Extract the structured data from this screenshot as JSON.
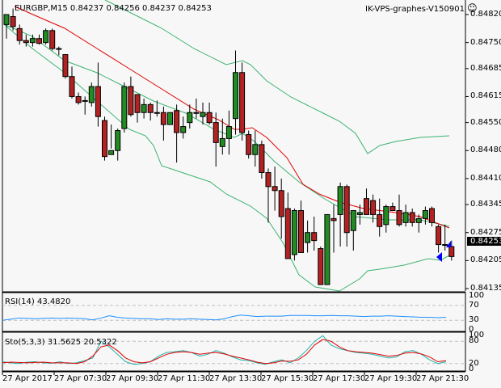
{
  "header": {
    "symbol_info": "EURGBP,M15  0.84237 0.84256 0.84237 0.84253",
    "ea_label": "IK-VPS-graphes-V150901",
    "smiley_icon": "☺"
  },
  "colors": {
    "background": "#f7f7f7",
    "bull": "#228b22",
    "bear": "#b22222",
    "bb": "#3cb371",
    "ma": "#e00000",
    "rsi": "#1e90ff",
    "sto_main": "#20b2aa",
    "sto_signal": "#e00000",
    "axis": "#000000",
    "grid_level": "#c0c0c0"
  },
  "price_axis": {
    "labels": [
      "0.84820",
      "0.84750",
      "0.84685",
      "0.84615",
      "0.84550",
      "0.84480",
      "0.84410",
      "0.84345",
      "0.84275",
      "0.84205",
      "0.84135"
    ],
    "current_price": "0.84253"
  },
  "rsi": {
    "title": "RSI(14) 43.4820",
    "axis_labels": [
      "100",
      "70",
      "30",
      "0"
    ]
  },
  "sto": {
    "title": "Sto(5,3,3) 31.5625 20.5322",
    "axis_labels": [
      "100",
      "80",
      "20",
      "0"
    ]
  },
  "time_axis": {
    "labels": [
      "27 Apr 2017",
      "27 Apr 07:30",
      "27 Apr 09:30",
      "27 Apr 11:30",
      "27 Apr 13:30",
      "27 Apr 15:30",
      "27 Apr 17:30",
      "27 Apr 19:30",
      "27 Apr 21:30"
    ]
  },
  "chart_data": [
    {
      "type": "candlestick",
      "title": "EURGBP,M15",
      "ohlc_header": {
        "open": 0.84237,
        "high": 0.84256,
        "low": 0.84237,
        "close": 0.84253
      },
      "ylim": [
        0.8411,
        0.8484
      ],
      "y_ticks": [
        0.8482,
        0.8475,
        0.84685,
        0.84615,
        0.8455,
        0.8448,
        0.8441,
        0.84345,
        0.84275,
        0.84205,
        0.84135
      ],
      "x_tick_labels": [
        "27 Apr 2017",
        "27 Apr 07:30",
        "27 Apr 09:30",
        "27 Apr 11:30",
        "27 Apr 13:30",
        "27 Apr 15:30",
        "27 Apr 17:30",
        "27 Apr 19:30",
        "27 Apr 21:30"
      ],
      "candles": [
        {
          "o": 0.84795,
          "h": 0.8482,
          "l": 0.8476,
          "c": 0.8482
        },
        {
          "o": 0.84815,
          "h": 0.84835,
          "l": 0.8478,
          "c": 0.8479
        },
        {
          "o": 0.84785,
          "h": 0.84795,
          "l": 0.84745,
          "c": 0.84755
        },
        {
          "o": 0.84755,
          "h": 0.8477,
          "l": 0.8474,
          "c": 0.8475
        },
        {
          "o": 0.8475,
          "h": 0.8477,
          "l": 0.8474,
          "c": 0.8476
        },
        {
          "o": 0.8476,
          "h": 0.8477,
          "l": 0.84745,
          "c": 0.84748
        },
        {
          "o": 0.8475,
          "h": 0.84785,
          "l": 0.84745,
          "c": 0.8478
        },
        {
          "o": 0.8478,
          "h": 0.84785,
          "l": 0.8473,
          "c": 0.84735
        },
        {
          "o": 0.84735,
          "h": 0.8474,
          "l": 0.84718,
          "c": 0.84735
        },
        {
          "o": 0.8472,
          "h": 0.8472,
          "l": 0.8466,
          "c": 0.84665
        },
        {
          "o": 0.84665,
          "h": 0.8469,
          "l": 0.8461,
          "c": 0.84615
        },
        {
          "o": 0.84615,
          "h": 0.84625,
          "l": 0.84595,
          "c": 0.846
        },
        {
          "o": 0.84605,
          "h": 0.84615,
          "l": 0.8457,
          "c": 0.84605
        },
        {
          "o": 0.846,
          "h": 0.8465,
          "l": 0.8459,
          "c": 0.8464
        },
        {
          "o": 0.8464,
          "h": 0.847,
          "l": 0.8454,
          "c": 0.84565
        },
        {
          "o": 0.84555,
          "h": 0.84565,
          "l": 0.84455,
          "c": 0.84465
        },
        {
          "o": 0.8447,
          "h": 0.84545,
          "l": 0.84485,
          "c": 0.8448
        },
        {
          "o": 0.8448,
          "h": 0.84535,
          "l": 0.84455,
          "c": 0.8453
        },
        {
          "o": 0.84535,
          "h": 0.8465,
          "l": 0.84525,
          "c": 0.8464
        },
        {
          "o": 0.8464,
          "h": 0.84665,
          "l": 0.84565,
          "c": 0.8457
        },
        {
          "o": 0.8462,
          "h": 0.8462,
          "l": 0.8455,
          "c": 0.84575
        },
        {
          "o": 0.84575,
          "h": 0.8461,
          "l": 0.8456,
          "c": 0.84595
        },
        {
          "o": 0.84595,
          "h": 0.846,
          "l": 0.84555,
          "c": 0.84575
        },
        {
          "o": 0.84575,
          "h": 0.84605,
          "l": 0.84565,
          "c": 0.84575
        },
        {
          "o": 0.84575,
          "h": 0.8459,
          "l": 0.84505,
          "c": 0.84545
        },
        {
          "o": 0.84545,
          "h": 0.84575,
          "l": 0.84545,
          "c": 0.84575
        },
        {
          "o": 0.8458,
          "h": 0.84595,
          "l": 0.8445,
          "c": 0.84525
        },
        {
          "o": 0.84525,
          "h": 0.84565,
          "l": 0.8451,
          "c": 0.8454
        },
        {
          "o": 0.8455,
          "h": 0.84595,
          "l": 0.84535,
          "c": 0.84575
        },
        {
          "o": 0.84575,
          "h": 0.8461,
          "l": 0.8456,
          "c": 0.84575
        },
        {
          "o": 0.84565,
          "h": 0.846,
          "l": 0.84545,
          "c": 0.84575
        },
        {
          "o": 0.84575,
          "h": 0.846,
          "l": 0.84545,
          "c": 0.8455
        },
        {
          "o": 0.8455,
          "h": 0.84575,
          "l": 0.8444,
          "c": 0.845
        },
        {
          "o": 0.8449,
          "h": 0.8456,
          "l": 0.8447,
          "c": 0.8451
        },
        {
          "o": 0.8451,
          "h": 0.8458,
          "l": 0.8447,
          "c": 0.8454
        },
        {
          "o": 0.8456,
          "h": 0.8473,
          "l": 0.8452,
          "c": 0.84675
        },
        {
          "o": 0.84675,
          "h": 0.847,
          "l": 0.84505,
          "c": 0.84525
        },
        {
          "o": 0.8452,
          "h": 0.8453,
          "l": 0.8446,
          "c": 0.8447
        },
        {
          "o": 0.8447,
          "h": 0.8453,
          "l": 0.8444,
          "c": 0.84495
        },
        {
          "o": 0.84495,
          "h": 0.84505,
          "l": 0.8441,
          "c": 0.84425
        },
        {
          "o": 0.84425,
          "h": 0.84435,
          "l": 0.843,
          "c": 0.8439
        },
        {
          "o": 0.8439,
          "h": 0.8444,
          "l": 0.8433,
          "c": 0.8438
        },
        {
          "o": 0.8438,
          "h": 0.8441,
          "l": 0.8426,
          "c": 0.84315
        },
        {
          "o": 0.84335,
          "h": 0.84375,
          "l": 0.8421,
          "c": 0.8421
        },
        {
          "o": 0.8422,
          "h": 0.84335,
          "l": 0.84205,
          "c": 0.8433
        },
        {
          "o": 0.8433,
          "h": 0.84355,
          "l": 0.8427,
          "c": 0.84225
        },
        {
          "o": 0.8425,
          "h": 0.84305,
          "l": 0.84225,
          "c": 0.84275
        },
        {
          "o": 0.84275,
          "h": 0.84315,
          "l": 0.8423,
          "c": 0.84255
        },
        {
          "o": 0.84235,
          "h": 0.8424,
          "l": 0.84145,
          "c": 0.84145
        },
        {
          "o": 0.84145,
          "h": 0.8432,
          "l": 0.84145,
          "c": 0.8432
        },
        {
          "o": 0.8431,
          "h": 0.84345,
          "l": 0.84225,
          "c": 0.84305
        },
        {
          "o": 0.8432,
          "h": 0.844,
          "l": 0.8424,
          "c": 0.8439
        },
        {
          "o": 0.8439,
          "h": 0.84395,
          "l": 0.8424,
          "c": 0.84275
        },
        {
          "o": 0.8428,
          "h": 0.8433,
          "l": 0.8423,
          "c": 0.8433
        },
        {
          "o": 0.8432,
          "h": 0.84345,
          "l": 0.84295,
          "c": 0.84325
        },
        {
          "o": 0.8436,
          "h": 0.84385,
          "l": 0.8433,
          "c": 0.8432
        },
        {
          "o": 0.84355,
          "h": 0.8437,
          "l": 0.843,
          "c": 0.8432
        },
        {
          "o": 0.8432,
          "h": 0.8436,
          "l": 0.84265,
          "c": 0.8429
        },
        {
          "o": 0.84295,
          "h": 0.84345,
          "l": 0.84275,
          "c": 0.8434
        },
        {
          "o": 0.8434,
          "h": 0.8435,
          "l": 0.8433,
          "c": 0.8433
        },
        {
          "o": 0.8433,
          "h": 0.8437,
          "l": 0.8429,
          "c": 0.84295
        },
        {
          "o": 0.843,
          "h": 0.84345,
          "l": 0.8429,
          "c": 0.84325
        },
        {
          "o": 0.84325,
          "h": 0.84335,
          "l": 0.8429,
          "c": 0.843
        },
        {
          "o": 0.843,
          "h": 0.8432,
          "l": 0.84275,
          "c": 0.8431
        },
        {
          "o": 0.8431,
          "h": 0.8434,
          "l": 0.84295,
          "c": 0.8433
        },
        {
          "o": 0.84335,
          "h": 0.8434,
          "l": 0.8429,
          "c": 0.843
        },
        {
          "o": 0.8429,
          "h": 0.84295,
          "l": 0.84225,
          "c": 0.84245
        },
        {
          "o": 0.84245,
          "h": 0.84295,
          "l": 0.8423,
          "c": 0.84245
        },
        {
          "o": 0.8424,
          "h": 0.84255,
          "l": 0.84205,
          "c": 0.84215
        },
        {
          "o": 0.84215,
          "h": 0.8425,
          "l": 0.84185,
          "c": 0.8424
        },
        {
          "o": 0.84237,
          "h": 0.84256,
          "l": 0.84237,
          "c": 0.84253
        }
      ],
      "overlays": [
        "Bollinger Bands (green)",
        "Moving Average (red)"
      ]
    },
    {
      "type": "line",
      "title": "RSI(14) 43.4820",
      "ylim": [
        0,
        100
      ],
      "levels": [
        30,
        70
      ],
      "series": [
        {
          "name": "RSI(14)",
          "last": 43.482
        }
      ]
    },
    {
      "type": "line",
      "title": "Sto(5,3,3) 31.5625 20.5322",
      "ylim": [
        0,
        100
      ],
      "levels": [
        20,
        80
      ],
      "series": [
        {
          "name": "Main",
          "last": 31.5625
        },
        {
          "name": "Signal",
          "last": 20.5322
        }
      ]
    }
  ]
}
